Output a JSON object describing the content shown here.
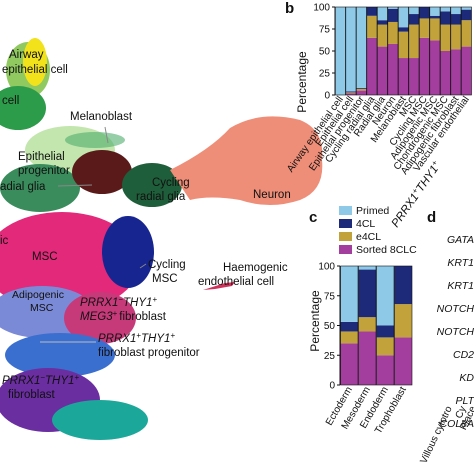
{
  "panel_labels": [
    "b",
    "c",
    "d"
  ],
  "umap": {
    "labels": {
      "airway": "Airway",
      "airway2": "epithelial cell",
      "cell": "cell",
      "melanoblast": "Melanoblast",
      "epi1": "Epithelial",
      "epi2": "progenitor",
      "radial": "adial glia",
      "cycling1": "Cycling",
      "cycling2": "radial glia",
      "neuron": "Neuron",
      "ic": "ic",
      "msc": "MSC",
      "cyc_msc1": "Cycling",
      "cyc_msc2": "MSC",
      "haem1": "Haemogenic",
      "haem2": "endothelial cell",
      "adipo1": "Adipogenic",
      "adipo2": "MSC",
      "prrx_a": "PRRX1",
      "prrx_a_sup1": "−",
      "prrx_a_thy": "THY1",
      "prrx_a_sup2": "+",
      "meg3": "MEG3",
      "meg3_sup": "+",
      "fib": "fibroblast",
      "prog_prrx": "PRRX1",
      "prog_sup1": "+",
      "prog_thy": "THY1",
      "prog_sup2": "+",
      "prog_label": "fibroblast progenitor",
      "low_prrx": "PRRX1",
      "low_sup1": "−",
      "low_thy": "THY1",
      "low_sup2": "+",
      "low_fib": "fibroblast"
    },
    "colors": {
      "airway": "#f2e21c",
      "airway_green": "#7bc043",
      "epithelial": "#2d9c4a",
      "melanoblast": "#8fd16a",
      "epi_prog": "#5a1a1a",
      "radial": "#3a8c5c",
      "cycling_radial": "#1f5e3a",
      "neuron": "#ef8e78",
      "msc": "#e2297a",
      "cycling_msc": "#16258f",
      "adipogenic": "#7b8ad6",
      "fibroblast_a": "#c73a7a",
      "prog": "#3a6fd0",
      "fibroblast_b": "#6a2ea0",
      "teal": "#1ba89a",
      "haemogenic": "#d0315a"
    }
  },
  "chart_data": [
    {
      "panel": "b",
      "type": "bar",
      "stacked": true,
      "ylabel": "Percentage",
      "ylim": [
        0,
        100
      ],
      "yticks": [
        0,
        25,
        50,
        75,
        100
      ],
      "categories": [
        "Airway epithelial cell",
        "Epithelial cell",
        "Epithelial progenitor",
        "Cycling radial glia",
        "Radial glia",
        "Neuron",
        "Melanoblast",
        "MSC",
        "Cycling MSC",
        "Adipogenic MSC",
        "Chondrogenic MSC",
        "Adipogenic fibroblast",
        "Vascular endothelial"
      ],
      "series": [
        {
          "name": "Sorted 8CLC",
          "values": [
            0,
            2,
            5,
            65,
            55,
            58,
            42,
            42,
            65,
            62,
            50,
            52,
            55
          ]
        },
        {
          "name": "e4CL",
          "values": [
            0,
            1,
            2,
            25,
            25,
            25,
            30,
            38,
            22,
            25,
            30,
            28,
            30
          ]
        },
        {
          "name": "4CL",
          "values": [
            0,
            1,
            1,
            10,
            5,
            15,
            5,
            12,
            13,
            3,
            15,
            12,
            12
          ]
        },
        {
          "name": "Primed",
          "values": [
            100,
            96,
            92,
            0,
            15,
            2,
            23,
            8,
            0,
            10,
            5,
            8,
            3
          ]
        }
      ],
      "footer_label_prrx": "PRRX1",
      "footer_label_sup1": "+",
      "footer_label_thy": "THY1",
      "footer_label_sup2": "+"
    },
    {
      "panel": "c",
      "type": "bar",
      "stacked": true,
      "ylabel": "Percentage",
      "ylim": [
        0,
        100
      ],
      "yticks": [
        0,
        25,
        50,
        75,
        100
      ],
      "categories": [
        "Ectoderm",
        "Mesoderm",
        "Endoderm",
        "Trophoblast"
      ],
      "legend_position": "top",
      "series": [
        {
          "name": "Sorted 8CLC",
          "values": [
            35,
            45,
            25,
            40
          ]
        },
        {
          "name": "e4CL",
          "values": [
            10,
            12,
            15,
            28
          ]
        },
        {
          "name": "4CL",
          "values": [
            8,
            40,
            10,
            32
          ]
        },
        {
          "name": "Primed",
          "values": [
            47,
            3,
            50,
            0
          ]
        }
      ],
      "colors": {
        "Primed": "#8ec9e8",
        "4CL": "#1d2a7a",
        "e4CL": "#c2a23a",
        "Sorted 8CLC": "#a33d9e"
      }
    }
  ],
  "panel_d": {
    "genes": [
      "GATA",
      "KRT1",
      "KRT1",
      "NOTCH",
      "NOTCH",
      "CD2",
      "KD",
      "PLT",
      "COL8A"
    ],
    "x_labels": [
      "Villous cytotro",
      "Cy",
      "Place"
    ]
  }
}
